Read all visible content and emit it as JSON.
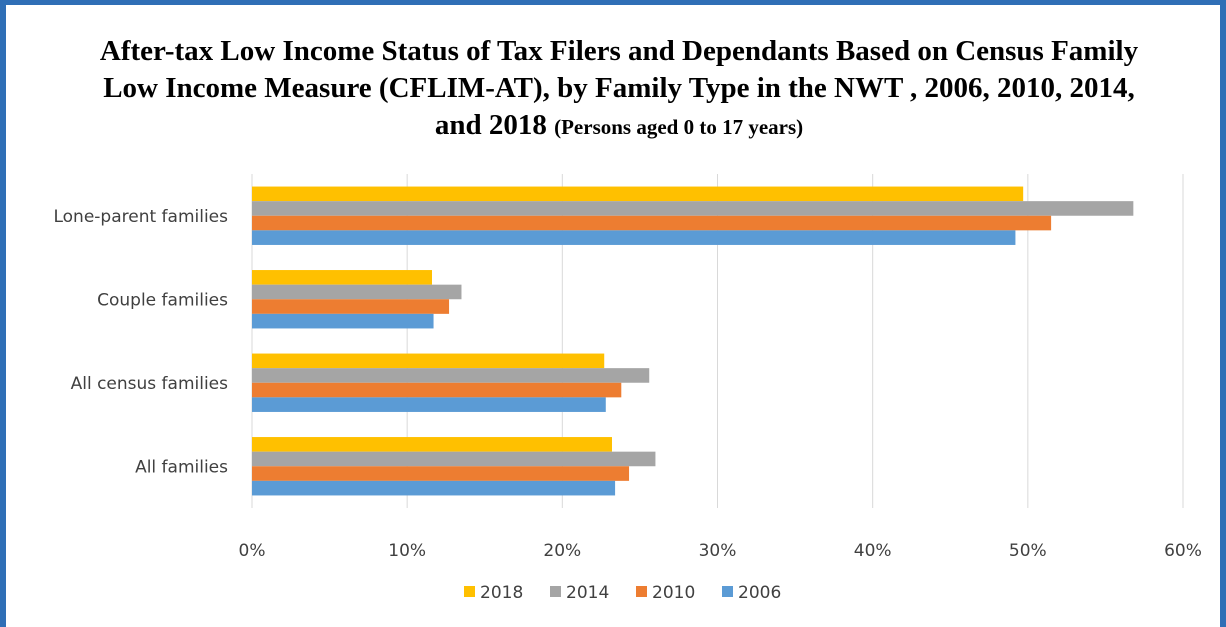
{
  "chart_data": {
    "type": "bar",
    "orientation": "horizontal",
    "title": "After-tax Low Income Status of Tax Filers and Dependants Based on Census Family Low Income Measure (CFLIM-AT), by Family Type in the NWT , 2006, 2010, 2014, and 2018",
    "subtitle": "(Persons aged 0 to 17 years)",
    "categories": [
      "Lone-parent families",
      "Couple families",
      "All census families",
      "All families"
    ],
    "series": [
      {
        "name": "2018",
        "color": "#ffc000",
        "values": [
          49.7,
          11.6,
          22.7,
          23.2
        ]
      },
      {
        "name": "2014",
        "color": "#a5a5a5",
        "values": [
          56.8,
          13.5,
          25.6,
          26.0
        ]
      },
      {
        "name": "2010",
        "color": "#ed7d31",
        "values": [
          51.5,
          12.7,
          23.8,
          24.3
        ]
      },
      {
        "name": "2006",
        "color": "#5b9bd5",
        "values": [
          49.2,
          11.7,
          22.8,
          23.4
        ]
      }
    ],
    "xlim": [
      0,
      60
    ],
    "x_ticks": [
      0,
      10,
      20,
      30,
      40,
      50,
      60
    ],
    "tick_labels": [
      "0%",
      "10%",
      "20%",
      "30%",
      "40%",
      "50%",
      "60%"
    ],
    "grid": true,
    "legend_position": "bottom"
  }
}
